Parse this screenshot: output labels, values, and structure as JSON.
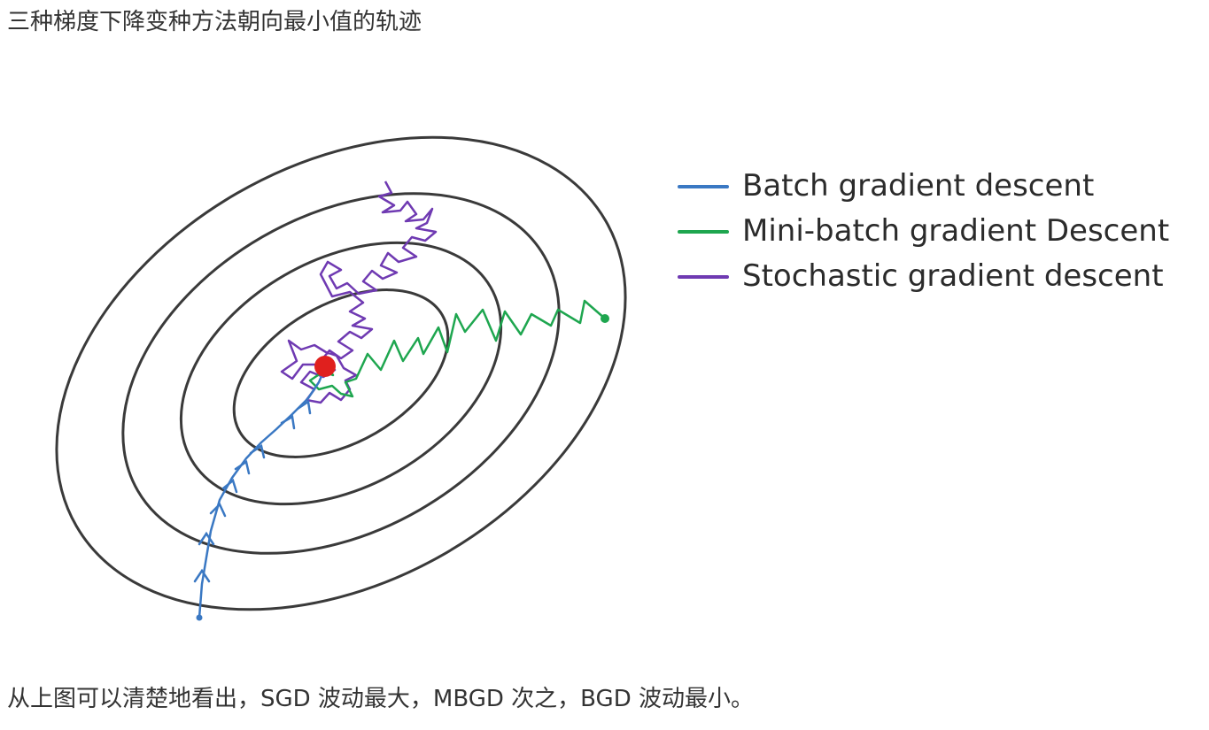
{
  "heading": "三种梯度下降变种方法朝向最小值的轨迹",
  "caption": "从上图可以清楚地看出，SGD 波动最大，MBGD 次之，BGD 波动最小。",
  "legend": {
    "items": [
      {
        "label": "Batch gradient descent",
        "color": "#3a78c3"
      },
      {
        "label": "Mini-batch gradient Descent",
        "color": "#1ea64f"
      },
      {
        "label": "Stochastic gradient descent",
        "color": "#6f3ab2"
      }
    ]
  },
  "colors": {
    "contour": "#3a3a3a",
    "minimum": "#e0201e",
    "batch": "#3a78c3",
    "minibatch": "#1ea64f",
    "stochastic": "#6f3ab2"
  }
}
